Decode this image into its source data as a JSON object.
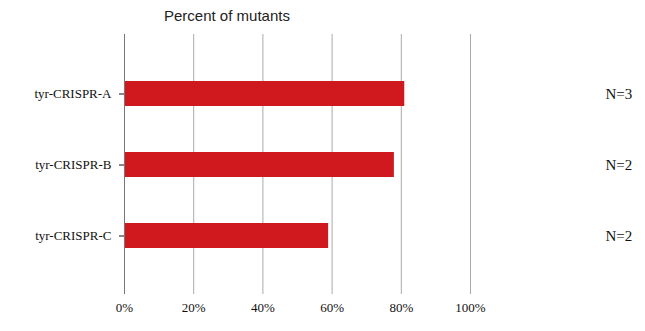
{
  "chart_data": {
    "type": "bar",
    "orientation": "horizontal",
    "title": "Percent of mutants",
    "categories": [
      "tyr-CRISPR-A",
      "tyr-CRISPR-B",
      "tyr-CRISPR-C"
    ],
    "values": [
      81,
      78,
      59
    ],
    "color": "#d0191e",
    "xlim": [
      0,
      100
    ],
    "xticks": [
      {
        "value": 0,
        "label": "0%"
      },
      {
        "value": 20,
        "label": "20%"
      },
      {
        "value": 40,
        "label": "40%"
      },
      {
        "value": 60,
        "label": "60%"
      },
      {
        "value": 80,
        "label": "80%"
      },
      {
        "value": 100,
        "label": "100%"
      }
    ],
    "grid": true,
    "annotations": [
      "N=3",
      "N=2",
      "N=2"
    ]
  }
}
